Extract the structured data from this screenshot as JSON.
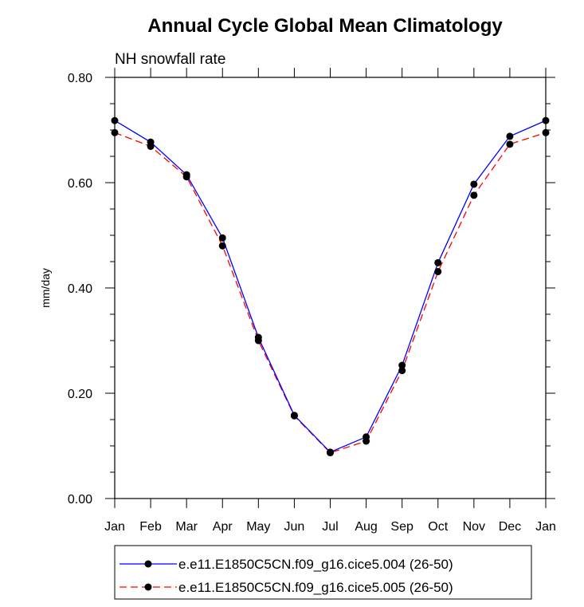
{
  "chart_data": {
    "type": "line",
    "title": "Annual Cycle Global Mean Climatology",
    "subtitle": "NH snowfall rate",
    "xlabel": "",
    "ylabel": "mm/day",
    "ylim": [
      0,
      0.8
    ],
    "yticks": [
      "0.00",
      "0.20",
      "0.40",
      "0.60",
      "0.80"
    ],
    "categories": [
      "Jan",
      "Feb",
      "Mar",
      "Apr",
      "May",
      "Jun",
      "Jul",
      "Aug",
      "Sep",
      "Oct",
      "Nov",
      "Dec",
      "Jan"
    ],
    "grid": false,
    "legend_position": "bottom",
    "series": [
      {
        "name": "e.e11.E1850C5CN.f09_g16.cice5.004 (26-50)",
        "color": "#0000ff",
        "dash": "solid",
        "marker": "filled-circle",
        "values": [
          0.718,
          0.677,
          0.615,
          0.495,
          0.306,
          0.158,
          0.088,
          0.117,
          0.253,
          0.448,
          0.597,
          0.688,
          0.718
        ]
      },
      {
        "name": "e.e11.E1850C5CN.f09_g16.cice5.005 (26-50)",
        "color": "#ff0000",
        "dash": "dashed",
        "marker": "filled-circle",
        "values": [
          0.695,
          0.669,
          0.611,
          0.48,
          0.3,
          0.157,
          0.087,
          0.109,
          0.243,
          0.431,
          0.576,
          0.673,
          0.695
        ]
      }
    ]
  }
}
